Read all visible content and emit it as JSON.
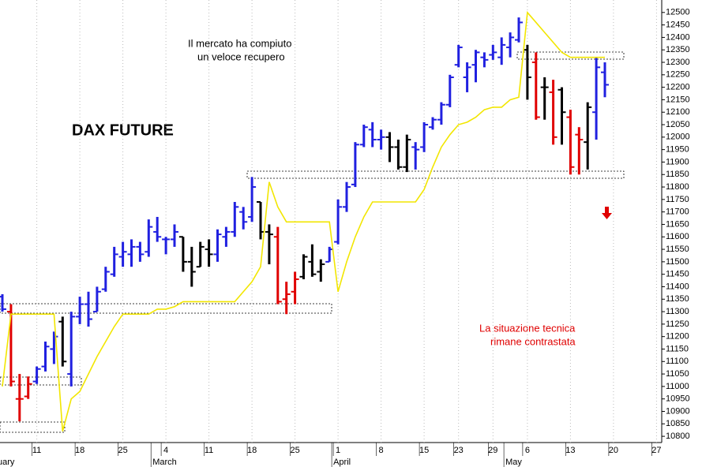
{
  "chart_data": {
    "type": "ohlc",
    "title": "DAX FUTURE",
    "annotations": [
      "Il mercato ha compiuto",
      "un veloce recupero"
    ],
    "note": [
      "La situazione tecnica",
      "rimane contrastata"
    ],
    "categories": [
      null,
      null,
      null,
      null,
      "11",
      null,
      null,
      null,
      null,
      "18",
      null,
      null,
      null,
      null,
      "25",
      null,
      null,
      null,
      null,
      "4",
      null,
      null,
      null,
      null,
      "11",
      null,
      null,
      null,
      null,
      "18",
      null,
      null,
      null,
      null,
      "25",
      null,
      null,
      null,
      null,
      "1",
      null,
      null,
      null,
      null,
      "8",
      null,
      null,
      null,
      null,
      "15",
      null,
      null,
      null,
      "23",
      null,
      null,
      null,
      "29",
      null,
      null,
      null,
      "6",
      null,
      null,
      null,
      null,
      "13",
      null,
      null,
      null,
      null,
      "20",
      null,
      null,
      null,
      null,
      "27"
    ],
    "months": [
      "uary",
      null,
      null,
      null,
      null,
      null,
      null,
      null,
      null,
      null,
      null,
      null,
      null,
      null,
      null,
      null,
      null,
      null,
      "March",
      null,
      null,
      null,
      null,
      null,
      null,
      null,
      null,
      null,
      null,
      null,
      null,
      null,
      null,
      null,
      null,
      null,
      null,
      null,
      null,
      "April",
      null,
      null,
      null,
      null,
      null,
      null,
      null,
      null,
      null,
      null,
      null,
      null,
      null,
      null,
      null,
      null,
      null,
      null,
      null,
      "May",
      null,
      null,
      null,
      null,
      null,
      null,
      null,
      null,
      null,
      null,
      null,
      null,
      null,
      null,
      null,
      null,
      null
    ],
    "ohlc": {
      "high": [
        11370,
        11330,
        11050,
        11040,
        11080,
        11180,
        11220,
        11280,
        11300,
        11360,
        11380,
        11400,
        11480,
        11560,
        11580,
        11590,
        11580,
        11670,
        11680,
        11600,
        11650,
        11600,
        11560,
        11580,
        11590,
        11630,
        11640,
        11740,
        11720,
        11840,
        11740,
        11650,
        11640,
        11420,
        11460,
        11530,
        11570,
        11510,
        11560,
        11750,
        11820,
        11980,
        12050,
        12060,
        12030,
        12020,
        11990,
        12010,
        11980,
        12060,
        12080,
        12140,
        12250,
        12370,
        12300,
        12350,
        12340,
        12370,
        12400,
        12420,
        12480,
        12370,
        12340,
        12240,
        12230,
        12200,
        12110,
        12040,
        12140,
        12320,
        12300,
        null,
        null,
        null,
        null,
        null,
        null
      ],
      "low": [
        11300,
        11000,
        10860,
        10950,
        11010,
        11060,
        11090,
        11080,
        11000,
        11250,
        11240,
        11300,
        11380,
        11440,
        11480,
        11480,
        11500,
        11520,
        11580,
        11530,
        11560,
        11460,
        11400,
        11480,
        11480,
        11500,
        11560,
        11600,
        11630,
        11660,
        11590,
        11490,
        11330,
        11290,
        11330,
        11430,
        11440,
        11420,
        11500,
        11570,
        11700,
        11800,
        11960,
        11960,
        11950,
        11900,
        11870,
        11860,
        11870,
        11940,
        12030,
        12050,
        12120,
        12280,
        12180,
        12220,
        12280,
        12310,
        12290,
        12320,
        12380,
        12150,
        12070,
        12070,
        11970,
        11970,
        11850,
        11850,
        11870,
        11990,
        12160,
        null,
        null,
        null,
        null,
        null,
        null
      ],
      "open": [
        11360,
        11300,
        10950,
        10960,
        11020,
        11080,
        11150,
        11260,
        11050,
        11280,
        11330,
        11300,
        11390,
        11450,
        11520,
        11530,
        11560,
        11540,
        11620,
        11590,
        11590,
        11600,
        11500,
        11480,
        11550,
        11530,
        11600,
        11620,
        11700,
        11680,
        11740,
        11620,
        11600,
        11350,
        11380,
        11440,
        11500,
        11460,
        11500,
        11580,
        11720,
        11810,
        11970,
        12030,
        11990,
        12000,
        11960,
        11880,
        11960,
        11960,
        12040,
        12070,
        12130,
        12290,
        12240,
        12290,
        12320,
        12330,
        12320,
        12360,
        12390,
        12350,
        12300,
        12200,
        12180,
        12190,
        12080,
        12010,
        11980,
        12100,
        12260,
        null,
        null,
        null,
        null,
        null,
        null
      ],
      "close": [
        11310,
        11020,
        10950,
        11010,
        11070,
        11160,
        11200,
        11100,
        11280,
        11330,
        11270,
        11380,
        11460,
        11530,
        11540,
        11560,
        11530,
        11640,
        11600,
        11590,
        11620,
        11500,
        11460,
        11560,
        11530,
        11610,
        11620,
        11720,
        11660,
        11800,
        11620,
        11610,
        11340,
        11370,
        11430,
        11520,
        11450,
        11490,
        11550,
        11720,
        11800,
        11970,
        12040,
        11990,
        12000,
        11960,
        11880,
        11990,
        11950,
        12050,
        12070,
        12130,
        12240,
        12360,
        12280,
        12340,
        12310,
        12340,
        12370,
        12400,
        12460,
        12240,
        12080,
        12200,
        12000,
        12100,
        11880,
        11990,
        12120,
        12280,
        12210,
        null,
        null,
        null,
        null,
        null,
        null
      ],
      "colors": [
        "#2020e0",
        "#e00000",
        "#e00000",
        "#e00000",
        "#2020e0",
        "#2020e0",
        "#2020e0",
        "#000000",
        "#2020e0",
        "#2020e0",
        "#2020e0",
        "#2020e0",
        "#2020e0",
        "#2020e0",
        "#2020e0",
        "#2020e0",
        "#2020e0",
        "#2020e0",
        "#2020e0",
        "#2020e0",
        "#2020e0",
        "#000000",
        "#000000",
        "#000000",
        "#000000",
        "#2020e0",
        "#2020e0",
        "#2020e0",
        "#2020e0",
        "#2020e0",
        "#000000",
        "#000000",
        "#e00000",
        "#e00000",
        "#e00000",
        "#000000",
        "#000000",
        "#000000",
        "#2020e0",
        "#2020e0",
        "#2020e0",
        "#2020e0",
        "#2020e0",
        "#2020e0",
        "#2020e0",
        "#000000",
        "#000000",
        "#000000",
        "#2020e0",
        "#2020e0",
        "#2020e0",
        "#2020e0",
        "#2020e0",
        "#2020e0",
        "#2020e0",
        "#2020e0",
        "#2020e0",
        "#2020e0",
        "#2020e0",
        "#2020e0",
        "#2020e0",
        "#000000",
        "#e00000",
        "#000000",
        "#e00000",
        "#000000",
        "#e00000",
        "#e00000",
        "#000000",
        "#2020e0",
        "#2020e0",
        null,
        null,
        null,
        null,
        null,
        null
      ]
    },
    "stop_line": {
      "color": "#f2e600",
      "values": [
        11000,
        11290,
        11290,
        11290,
        11290,
        11290,
        11290,
        10820,
        10950,
        10980,
        11050,
        11120,
        11180,
        11240,
        11290,
        11290,
        11290,
        11290,
        11310,
        11310,
        11320,
        11340,
        11340,
        11340,
        11340,
        11340,
        11340,
        11340,
        11380,
        11420,
        11480,
        11820,
        11720,
        11660,
        11660,
        11660,
        11660,
        11660,
        11660,
        11380,
        11500,
        11600,
        11680,
        11740,
        11740,
        11740,
        11740,
        11740,
        11740,
        11790,
        11880,
        11960,
        12010,
        12050,
        12060,
        12080,
        12110,
        12120,
        12120,
        12150,
        12160,
        12500,
        12460,
        12420,
        12380,
        12340,
        12320,
        12320,
        12320,
        12320,
        12320,
        null,
        null,
        null,
        null,
        null,
        null
      ]
    },
    "ylim": [
      10775,
      12550
    ],
    "yticks": [
      10800,
      10850,
      10900,
      10950,
      11000,
      11050,
      11100,
      11150,
      11200,
      11250,
      11300,
      11350,
      11400,
      11450,
      11500,
      11550,
      11600,
      11650,
      11700,
      11750,
      11800,
      11850,
      11900,
      11950,
      12000,
      12050,
      12100,
      12150,
      12200,
      12250,
      12300,
      12350,
      12400,
      12450,
      12500
    ],
    "grid": true
  }
}
